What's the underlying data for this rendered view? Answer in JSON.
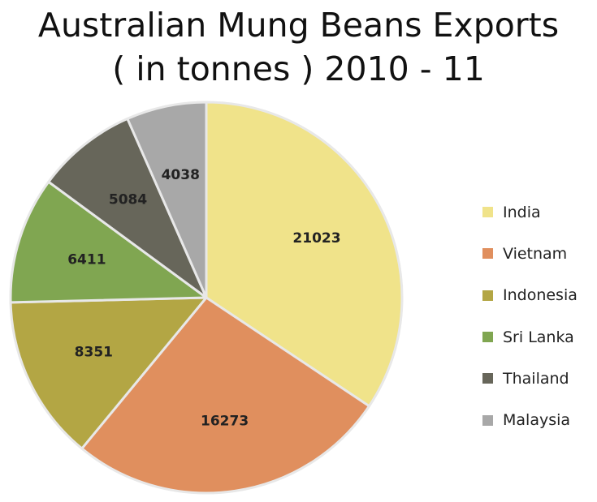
{
  "chart_data": {
    "type": "pie",
    "title": "Australian Mung Beans Exports ( in tonnes ) 2010 - 11",
    "title_lines": [
      "Australian Mung Beans Exports",
      "( in tonnes ) 2010 - 11"
    ],
    "start_angle": "12 o'clock, clockwise",
    "legend_position": "right",
    "slices": [
      {
        "name": "India",
        "value": 21023,
        "label": "21023",
        "color": "#F0E38A"
      },
      {
        "name": "Vietnam",
        "value": 16273,
        "label": "16273",
        "color": "#E08F5E"
      },
      {
        "name": "Indonesia",
        "value": 8351,
        "label": "8351",
        "color": "#B3A644"
      },
      {
        "name": "Sri Lanka",
        "value": 6411,
        "label": "6411",
        "color": "#80A651"
      },
      {
        "name": "Thailand",
        "value": 5084,
        "label": "5084",
        "color": "#67665A"
      },
      {
        "name": "Malaysia",
        "value": 4038,
        "label": "4038",
        "color": "#A8A8A8"
      }
    ]
  }
}
